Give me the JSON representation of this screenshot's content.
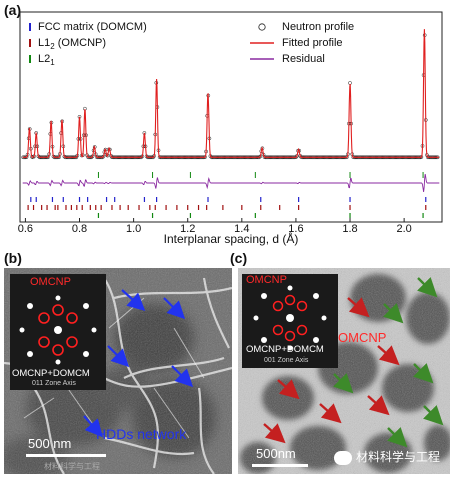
{
  "panels": {
    "a": "(a)",
    "b": "(b)",
    "c": "(c)"
  },
  "chart_data": {
    "type": "line",
    "xlabel": "Interplanar spacing, d (Å)",
    "ylabel": "",
    "xlim": [
      0.58,
      2.14
    ],
    "x_ticks": [
      "0.6",
      "0.8",
      "1.0",
      "1.2",
      "1.4",
      "1.6",
      "1.8",
      "2.0"
    ],
    "legend_left": [
      {
        "label": "FCC matrix (DOMCM)",
        "color": "#2222cc"
      },
      {
        "label": "L1",
        "sub": "2",
        "label_tail": " (OMCNP)",
        "color": "#a01010"
      },
      {
        "label": "L2",
        "sub": "1",
        "label_tail": "",
        "color": "#118811"
      }
    ],
    "legend_right": [
      {
        "label": "Neutron profile",
        "symbol": "circle"
      },
      {
        "label": "Fitted profile",
        "color": "#e02020"
      },
      {
        "label": "Residual",
        "color": "#8a2aa0"
      }
    ],
    "peaks": [
      {
        "d": 0.615,
        "h": 0.22
      },
      {
        "d": 0.64,
        "h": 0.18
      },
      {
        "d": 0.695,
        "h": 0.27
      },
      {
        "d": 0.735,
        "h": 0.28
      },
      {
        "d": 0.8,
        "h": 0.3
      },
      {
        "d": 0.82,
        "h": 0.36
      },
      {
        "d": 0.855,
        "h": 0.08
      },
      {
        "d": 0.895,
        "h": 0.06
      },
      {
        "d": 0.91,
        "h": 0.07
      },
      {
        "d": 1.04,
        "h": 0.18
      },
      {
        "d": 1.085,
        "h": 0.58
      },
      {
        "d": 1.275,
        "h": 0.48
      },
      {
        "d": 1.475,
        "h": 0.07
      },
      {
        "d": 1.61,
        "h": 0.06
      },
      {
        "d": 1.8,
        "h": 0.55
      },
      {
        "d": 2.075,
        "h": 0.95
      }
    ],
    "fcc_ticks": [
      0.62,
      0.64,
      0.7,
      0.74,
      0.8,
      0.83,
      0.9,
      0.93,
      1.04,
      1.085,
      1.275,
      1.47,
      1.61,
      1.8,
      2.08
    ],
    "l12_ticks": [
      0.61,
      0.63,
      0.66,
      0.68,
      0.71,
      0.72,
      0.75,
      0.77,
      0.79,
      0.81,
      0.84,
      0.86,
      0.88,
      0.92,
      0.95,
      0.98,
      1.02,
      1.06,
      1.08,
      1.12,
      1.16,
      1.2,
      1.24,
      1.27,
      1.33,
      1.4,
      1.47,
      1.54,
      1.61,
      1.8,
      2.08
    ],
    "l21_ticks": [
      0.87,
      1.07,
      1.21,
      1.45,
      1.8,
      2.07
    ]
  },
  "panel_b": {
    "inset_top": "OMCNP",
    "inset_bottom": "OMCNP+DOMCM",
    "inset_zone": "011 Zone Axis",
    "annotation": "HDDs network",
    "scale": "500 nm"
  },
  "panel_c": {
    "inset_top": "OMCNP",
    "inset_bottom": "OMCNP+DOMCM",
    "inset_zone": "001 Zone Axis",
    "annotation": "OMCNP",
    "scale": "500nm"
  },
  "watermark": {
    "text": "材料科学与工程",
    "small": "材料科学与工程"
  },
  "colors": {
    "fcc": "#2222cc",
    "l12": "#a01010",
    "l21": "#118811",
    "fit": "#e02020",
    "residual": "#8a2aa0",
    "hdd_arrow": "#2233ee",
    "omcnp_arrow": "#c42020",
    "l21_arrow": "#3d8a2a"
  }
}
